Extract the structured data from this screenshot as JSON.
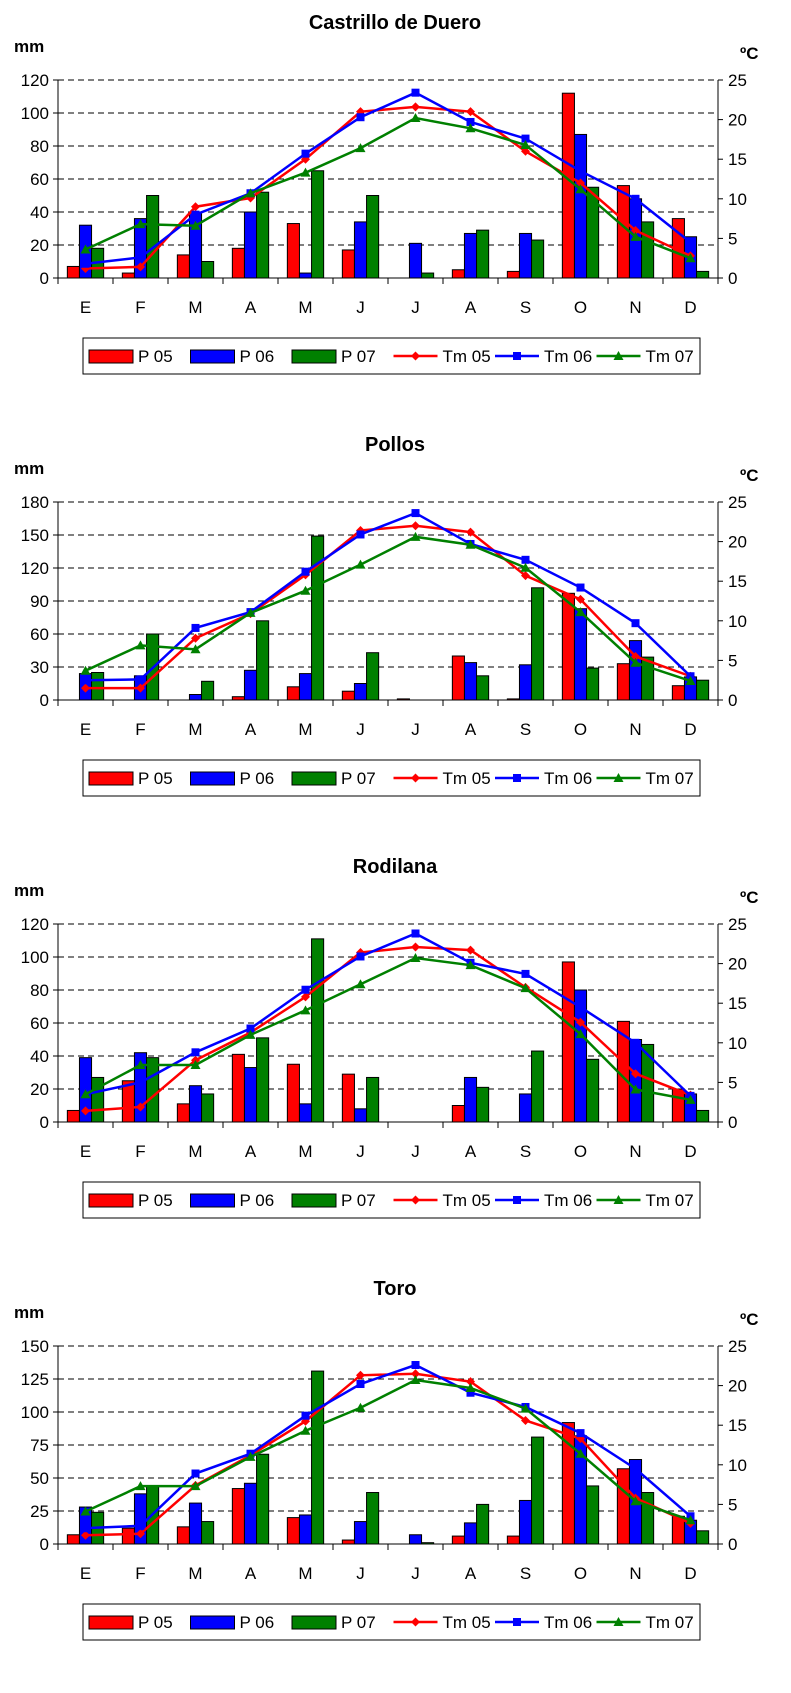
{
  "colors": {
    "p05": "#ff0000",
    "p06": "#0000ff",
    "p07": "#008000",
    "tm05": "#ff0000",
    "tm06": "#0000ff",
    "tm07": "#008000"
  },
  "legend": [
    "P 05",
    "P 06",
    "P 07",
    "Tm 05",
    "Tm 06",
    "Tm 07"
  ],
  "chart_data": [
    {
      "type": "bar",
      "title": "Castrillo de Duero",
      "ylabel": "mm",
      "y2label": "ºC",
      "categories": [
        "E",
        "F",
        "M",
        "A",
        "M",
        "J",
        "J",
        "A",
        "S",
        "O",
        "N",
        "D"
      ],
      "ylim": [
        0,
        120
      ],
      "yticks": [
        0,
        20,
        40,
        60,
        80,
        100,
        120
      ],
      "y2lim": [
        0,
        25
      ],
      "y2ticks": [
        0,
        5,
        10,
        15,
        20,
        25
      ],
      "grid": true,
      "legend_position": "bottom",
      "series": [
        {
          "name": "P 05",
          "kind": "bar",
          "axis": "left",
          "values": [
            7,
            3,
            14,
            18,
            33,
            17,
            0,
            5,
            4,
            112,
            56,
            36
          ]
        },
        {
          "name": "P 06",
          "kind": "bar",
          "axis": "left",
          "values": [
            32,
            36,
            40,
            40,
            3,
            34,
            21,
            27,
            27,
            87,
            48,
            25
          ]
        },
        {
          "name": "P 07",
          "kind": "bar",
          "axis": "left",
          "values": [
            18,
            50,
            10,
            52,
            65,
            50,
            3,
            29,
            23,
            55,
            34,
            4
          ]
        },
        {
          "name": "Tm 05",
          "kind": "line",
          "axis": "right",
          "values": [
            1.2,
            1.4,
            9.0,
            10.1,
            15.0,
            21.0,
            21.6,
            21.0,
            16.0,
            12.0,
            6.0,
            2.8
          ]
        },
        {
          "name": "Tm 06",
          "kind": "line",
          "axis": "right",
          "values": [
            1.8,
            2.6,
            8.0,
            10.7,
            15.7,
            20.3,
            23.4,
            19.7,
            17.6,
            13.5,
            10.0,
            4.5
          ]
        },
        {
          "name": "Tm 07",
          "kind": "line",
          "axis": "right",
          "values": [
            3.6,
            6.8,
            6.6,
            10.7,
            13.3,
            16.4,
            20.2,
            18.9,
            16.8,
            11.2,
            5.2,
            2.5
          ]
        }
      ]
    },
    {
      "type": "bar",
      "title": "Pollos",
      "ylabel": "mm",
      "y2label": "ºC",
      "categories": [
        "E",
        "F",
        "M",
        "A",
        "M",
        "J",
        "J",
        "A",
        "S",
        "O",
        "N",
        "D"
      ],
      "ylim": [
        0,
        180
      ],
      "yticks": [
        0,
        30,
        60,
        90,
        120,
        150,
        180
      ],
      "y2lim": [
        0,
        25
      ],
      "y2ticks": [
        0,
        5,
        10,
        15,
        20,
        25
      ],
      "grid": true,
      "legend_position": "bottom",
      "series": [
        {
          "name": "P 05",
          "kind": "bar",
          "axis": "left",
          "values": [
            0,
            0,
            0,
            3,
            12,
            8,
            1,
            40,
            1,
            97,
            33,
            13
          ]
        },
        {
          "name": "P 06",
          "kind": "bar",
          "axis": "left",
          "values": [
            24,
            22,
            5,
            27,
            24,
            15,
            0,
            34,
            32,
            83,
            54,
            21
          ]
        },
        {
          "name": "P 07",
          "kind": "bar",
          "axis": "left",
          "values": [
            25,
            60,
            17,
            72,
            149,
            43,
            0,
            22,
            102,
            29,
            39,
            18
          ]
        },
        {
          "name": "Tm 05",
          "kind": "line",
          "axis": "right",
          "values": [
            1.5,
            1.5,
            7.8,
            10.9,
            15.8,
            21.4,
            22.0,
            21.2,
            15.7,
            12.7,
            5.5,
            3.0
          ]
        },
        {
          "name": "Tm 06",
          "kind": "line",
          "axis": "right",
          "values": [
            2.5,
            2.6,
            9.1,
            11.1,
            16.2,
            20.9,
            23.6,
            19.7,
            17.7,
            14.2,
            9.7,
            3.0
          ]
        },
        {
          "name": "Tm 07",
          "kind": "line",
          "axis": "right",
          "values": [
            3.7,
            6.9,
            6.4,
            11.0,
            13.8,
            17.1,
            20.6,
            19.6,
            16.7,
            11.1,
            4.7,
            2.4
          ]
        }
      ]
    },
    {
      "type": "bar",
      "title": "Rodilana",
      "ylabel": "mm",
      "y2label": "ºC",
      "categories": [
        "E",
        "F",
        "M",
        "A",
        "M",
        "J",
        "J",
        "A",
        "S",
        "O",
        "N",
        "D"
      ],
      "ylim": [
        0,
        120
      ],
      "yticks": [
        0,
        20,
        40,
        60,
        80,
        100,
        120
      ],
      "y2lim": [
        0,
        25
      ],
      "y2ticks": [
        0,
        5,
        10,
        15,
        20,
        25
      ],
      "grid": true,
      "legend_position": "bottom",
      "series": [
        {
          "name": "P 05",
          "kind": "bar",
          "axis": "left",
          "values": [
            7,
            25,
            11,
            41,
            35,
            29,
            0,
            10,
            0,
            97,
            61,
            20
          ]
        },
        {
          "name": "P 06",
          "kind": "bar",
          "axis": "left",
          "values": [
            39,
            42,
            22,
            33,
            11,
            8,
            0,
            27,
            17,
            80,
            50,
            17
          ]
        },
        {
          "name": "P 07",
          "kind": "bar",
          "axis": "left",
          "values": [
            27,
            39,
            17,
            51,
            111,
            27,
            0,
            21,
            43,
            38,
            47,
            7
          ]
        },
        {
          "name": "Tm 05",
          "kind": "line",
          "axis": "right",
          "values": [
            1.4,
            1.9,
            7.8,
            11.3,
            15.8,
            21.4,
            22.1,
            21.7,
            17.0,
            12.6,
            6.1,
            3.4
          ]
        },
        {
          "name": "Tm 06",
          "kind": "line",
          "axis": "right",
          "values": [
            3.5,
            5.0,
            8.8,
            11.8,
            16.7,
            20.9,
            23.8,
            20.1,
            18.7,
            14.5,
            10.0,
            3.3
          ]
        },
        {
          "name": "Tm 07",
          "kind": "line",
          "axis": "right",
          "values": [
            3.5,
            7.2,
            7.2,
            11.0,
            14.1,
            17.4,
            20.7,
            19.8,
            16.9,
            11.1,
            4.1,
            2.8
          ]
        }
      ]
    },
    {
      "type": "bar",
      "title": "Toro",
      "ylabel": "mm",
      "y2label": "ºC",
      "categories": [
        "E",
        "F",
        "M",
        "A",
        "M",
        "J",
        "J",
        "A",
        "S",
        "O",
        "N",
        "D"
      ],
      "ylim": [
        0,
        150
      ],
      "yticks": [
        0,
        25,
        50,
        75,
        100,
        125,
        150
      ],
      "y2lim": [
        0,
        25
      ],
      "y2ticks": [
        0,
        5,
        10,
        15,
        20,
        25
      ],
      "grid": true,
      "legend_position": "bottom",
      "series": [
        {
          "name": "P 05",
          "kind": "bar",
          "axis": "left",
          "values": [
            7,
            12,
            13,
            42,
            20,
            3,
            0,
            6,
            6,
            92,
            57,
            21
          ]
        },
        {
          "name": "P 06",
          "kind": "bar",
          "axis": "left",
          "values": [
            28,
            38,
            31,
            46,
            22,
            17,
            7,
            16,
            33,
            82,
            64,
            18
          ]
        },
        {
          "name": "P 07",
          "kind": "bar",
          "axis": "left",
          "values": [
            24,
            44,
            17,
            68,
            131,
            39,
            1,
            30,
            81,
            44,
            39,
            10
          ]
        },
        {
          "name": "Tm 05",
          "kind": "line",
          "axis": "right",
          "values": [
            1.1,
            1.3,
            7.4,
            11.2,
            15.5,
            21.3,
            21.5,
            20.5,
            15.6,
            13.3,
            5.8,
            2.6
          ]
        },
        {
          "name": "Tm 06",
          "kind": "line",
          "axis": "right",
          "values": [
            2.0,
            2.3,
            8.9,
            11.4,
            16.2,
            20.2,
            22.6,
            19.1,
            17.3,
            14.0,
            9.5,
            3.5
          ]
        },
        {
          "name": "Tm 07",
          "kind": "line",
          "axis": "right",
          "values": [
            4.1,
            7.3,
            7.3,
            11.0,
            14.3,
            17.2,
            20.7,
            19.7,
            17.1,
            11.4,
            5.4,
            3.0
          ]
        }
      ]
    }
  ]
}
